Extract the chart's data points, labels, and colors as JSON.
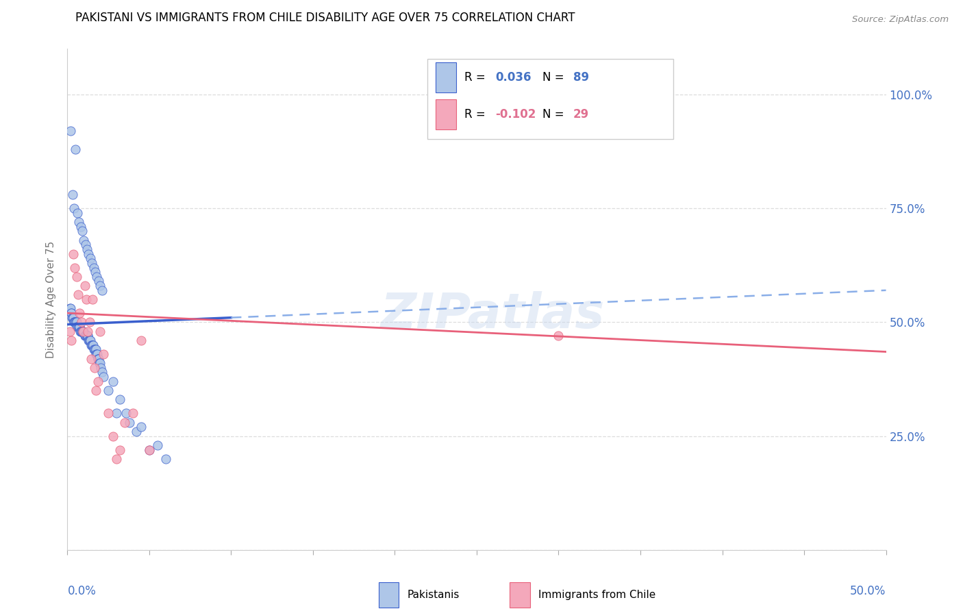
{
  "title": "PAKISTANI VS IMMIGRANTS FROM CHILE DISABILITY AGE OVER 75 CORRELATION CHART",
  "source": "Source: ZipAtlas.com",
  "ylabel": "Disability Age Over 75",
  "ytick_values": [
    0,
    25,
    50,
    75,
    100
  ],
  "ytick_labels": [
    "",
    "25.0%",
    "50.0%",
    "75.0%",
    "100.0%"
  ],
  "xlim": [
    0,
    50
  ],
  "ylim": [
    0,
    110
  ],
  "pakistani_color": "#aec6e8",
  "chile_color": "#f4a8bb",
  "trend_pakistani_solid_color": "#3a5fcd",
  "trend_pakistani_dashed_color": "#8aaee8",
  "trend_chile_color": "#e8607a",
  "watermark": "ZIPatlas",
  "legend_r1_label": "R = ",
  "legend_r1_val": "0.036",
  "legend_r1_n_label": "  N = ",
  "legend_r1_n_val": "89",
  "legend_r2_label": "R = ",
  "legend_r2_val": "-0.102",
  "legend_r2_n_label": "  N = ",
  "legend_r2_n_val": "29",
  "legend_color": "#4472c4",
  "legend_r2_color": "#e07090",
  "pak_x": [
    0.2,
    0.5,
    0.3,
    0.4,
    0.6,
    0.7,
    0.8,
    0.9,
    1.0,
    1.1,
    1.2,
    1.3,
    1.4,
    1.5,
    1.6,
    1.7,
    1.8,
    1.9,
    2.0,
    2.1,
    0.15,
    0.18,
    0.22,
    0.25,
    0.28,
    0.32,
    0.35,
    0.38,
    0.42,
    0.45,
    0.48,
    0.52,
    0.55,
    0.58,
    0.62,
    0.65,
    0.68,
    0.72,
    0.75,
    0.78,
    0.82,
    0.85,
    0.88,
    0.92,
    0.95,
    0.98,
    1.05,
    1.08,
    1.12,
    1.15,
    1.18,
    1.22,
    1.25,
    1.28,
    1.32,
    1.35,
    1.38,
    1.42,
    1.45,
    1.48,
    1.52,
    1.55,
    1.58,
    1.62,
    1.65,
    1.68,
    1.72,
    1.75,
    1.78,
    1.82,
    1.85,
    1.88,
    1.92,
    1.95,
    1.98,
    2.05,
    2.1,
    2.2,
    2.5,
    3.0,
    3.8,
    4.2,
    5.0,
    2.8,
    3.2,
    3.6,
    4.5,
    5.5,
    6.0
  ],
  "pak_y": [
    92,
    88,
    78,
    75,
    74,
    72,
    71,
    70,
    68,
    67,
    66,
    65,
    64,
    63,
    62,
    61,
    60,
    59,
    58,
    57,
    53,
    53,
    52,
    52,
    51,
    51,
    51,
    50,
    50,
    50,
    50,
    50,
    50,
    49,
    49,
    49,
    49,
    49,
    49,
    48,
    48,
    48,
    48,
    48,
    48,
    48,
    47,
    47,
    47,
    47,
    47,
    47,
    47,
    46,
    46,
    46,
    46,
    46,
    45,
    45,
    45,
    45,
    45,
    44,
    44,
    44,
    44,
    43,
    43,
    43,
    42,
    42,
    42,
    41,
    41,
    40,
    39,
    38,
    35,
    30,
    28,
    26,
    22,
    37,
    33,
    30,
    27,
    23,
    20
  ],
  "chile_x": [
    0.15,
    0.25,
    0.35,
    0.45,
    0.55,
    0.65,
    0.75,
    0.85,
    0.95,
    1.05,
    1.15,
    1.25,
    1.35,
    1.45,
    1.55,
    1.65,
    1.75,
    1.85,
    2.0,
    2.2,
    2.5,
    2.8,
    3.0,
    3.2,
    3.5,
    4.0,
    4.5,
    5.0,
    30.0
  ],
  "chile_y": [
    48,
    46,
    65,
    62,
    60,
    56,
    52,
    50,
    48,
    58,
    55,
    48,
    50,
    42,
    55,
    40,
    35,
    37,
    48,
    43,
    30,
    25,
    20,
    22,
    28,
    30,
    46,
    22,
    47
  ],
  "solid_line_end_x": 10,
  "pak_trend_x0": 0,
  "pak_trend_y0": 49.5,
  "pak_trend_x1": 50,
  "pak_trend_y1": 57.0,
  "chile_trend_x0": 0,
  "chile_trend_y0": 52.0,
  "chile_trend_x1": 50,
  "chile_trend_y1": 43.5
}
